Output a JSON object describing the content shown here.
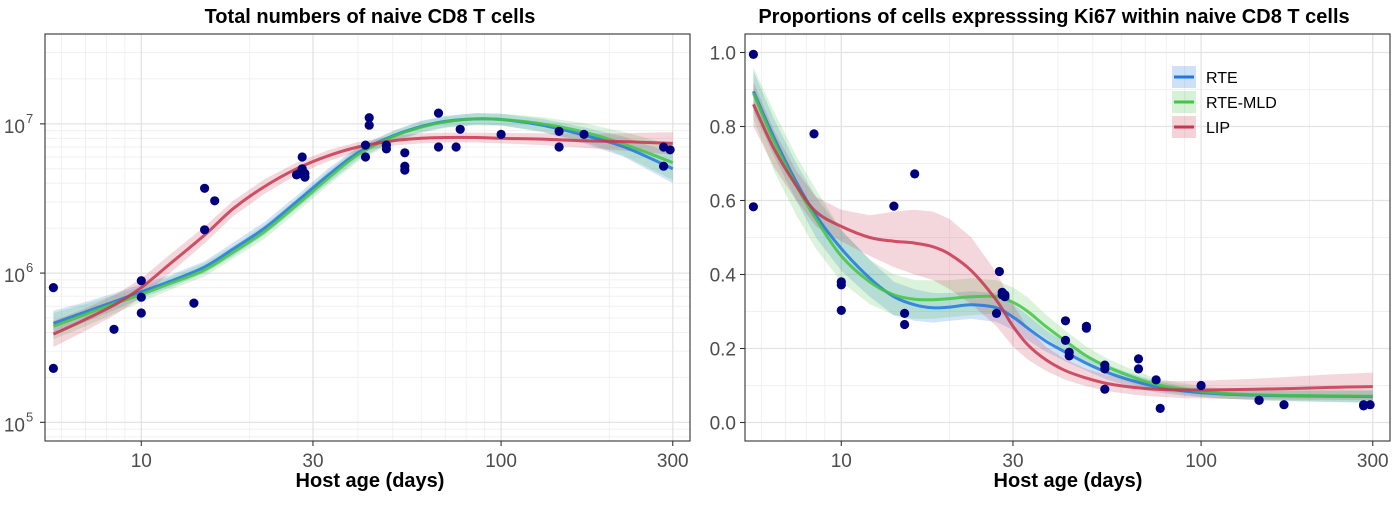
{
  "chart_data": [
    {
      "type": "line",
      "title": "Total numbers of naive CD8 T cells",
      "xlabel": "Host age (days)",
      "ylabel": "",
      "x_scale": "log",
      "y_scale": "log",
      "xlim": [
        5.4,
        335
      ],
      "ylim": [
        75000,
        40000000
      ],
      "x_ticks": [
        10,
        30,
        100,
        300
      ],
      "x_tick_labels": [
        "10",
        "30",
        "100",
        "300"
      ],
      "y_ticks": [
        100000,
        1000000,
        10000000
      ],
      "y_tick_labels": [
        {
          "base": "10",
          "exp": "5"
        },
        {
          "base": "10",
          "exp": "6"
        },
        {
          "base": "10",
          "exp": "7"
        }
      ],
      "grid": true,
      "points": {
        "color": "#00007f",
        "x": [
          5.7,
          5.7,
          8.4,
          10,
          10,
          10,
          14,
          15,
          15,
          16,
          27,
          27.5,
          28,
          28,
          28.5,
          28.5,
          42,
          42,
          43,
          43,
          48,
          48,
          54,
          54,
          54,
          67,
          67,
          75,
          77,
          100,
          145,
          145,
          170,
          283,
          283,
          295
        ],
        "y": [
          800000,
          230000,
          420000,
          890000,
          690000,
          540000,
          630000,
          3700000,
          1950000,
          3050000,
          4550000,
          4650000,
          5000000,
          6000000,
          4400000,
          4650000,
          6000000,
          7200000,
          9800000,
          11000000,
          6800000,
          7200000,
          6400000,
          5200000,
          4900000,
          11800000,
          7000000,
          7000000,
          9200000,
          8500000,
          8900000,
          7000000,
          8500000,
          7000000,
          5200000,
          6700000
        ]
      },
      "series": [
        {
          "name": "RTE",
          "color": "#1f78e0",
          "x": [
            5.7,
            7,
            8.5,
            10,
            12,
            15,
            18,
            22,
            27,
            33,
            40,
            50,
            60,
            70,
            85,
            100,
            130,
            170,
            220,
            300
          ],
          "y": [
            460000,
            550000,
            650000,
            750000,
            880000,
            1100000,
            1450000,
            2000000,
            3000000,
            4500000,
            6400000,
            8300000,
            9600000,
            10400000,
            10800000,
            10700000,
            9800000,
            8400000,
            7000000,
            5000000
          ],
          "lower": [
            380000,
            470000,
            570000,
            680000,
            800000,
            1000000,
            1300000,
            1800000,
            2700000,
            4000000,
            5800000,
            7600000,
            8800000,
            9500000,
            9900000,
            9800000,
            8800000,
            7400000,
            6000000,
            4000000
          ],
          "upper": [
            560000,
            640000,
            740000,
            840000,
            970000,
            1200000,
            1600000,
            2200000,
            3300000,
            5000000,
            7000000,
            9000000,
            10500000,
            11300000,
            11800000,
            11700000,
            10800000,
            9500000,
            8200000,
            6300000
          ]
        },
        {
          "name": "RTE-MLD",
          "color": "#44c444",
          "x": [
            5.7,
            7,
            8.5,
            10,
            12,
            15,
            18,
            22,
            27,
            33,
            40,
            50,
            60,
            70,
            85,
            100,
            130,
            170,
            220,
            300
          ],
          "y": [
            440000,
            530000,
            630000,
            720000,
            850000,
            1050000,
            1380000,
            1900000,
            2850000,
            4300000,
            6200000,
            8200000,
            9500000,
            10300000,
            10800000,
            10700000,
            10000000,
            8800000,
            7300000,
            5500000
          ],
          "lower": [
            360000,
            440000,
            540000,
            640000,
            770000,
            950000,
            1250000,
            1700000,
            2550000,
            3850000,
            5600000,
            7500000,
            8700000,
            9400000,
            9800000,
            9700000,
            8900000,
            7600000,
            6100000,
            4200000
          ],
          "upper": [
            540000,
            620000,
            720000,
            810000,
            940000,
            1170000,
            1520000,
            2100000,
            3150000,
            4800000,
            6900000,
            8900000,
            10400000,
            11200000,
            11800000,
            11700000,
            11100000,
            10100000,
            8800000,
            7200000
          ]
        },
        {
          "name": "LIP",
          "color": "#c8364f",
          "x": [
            5.7,
            7,
            8.5,
            10,
            12,
            15,
            18,
            22,
            27,
            33,
            40,
            50,
            60,
            70,
            85,
            100,
            130,
            170,
            220,
            300
          ],
          "y": [
            390000,
            490000,
            620000,
            800000,
            1150000,
            1800000,
            2700000,
            3800000,
            5000000,
            6100000,
            7000000,
            7700000,
            8000000,
            8100000,
            8100000,
            8000000,
            7900000,
            7700000,
            7600000,
            7400000
          ],
          "lower": [
            320000,
            410000,
            530000,
            690000,
            1000000,
            1580000,
            2400000,
            3400000,
            4550000,
            5600000,
            6500000,
            7150000,
            7400000,
            7500000,
            7500000,
            7400000,
            7200000,
            6900000,
            6600000,
            6200000
          ],
          "upper": [
            480000,
            580000,
            720000,
            920000,
            1330000,
            2050000,
            3050000,
            4250000,
            5500000,
            6650000,
            7550000,
            8300000,
            8650000,
            8750000,
            8750000,
            8700000,
            8650000,
            8600000,
            8650000,
            8800000
          ]
        }
      ]
    },
    {
      "type": "line",
      "title": "Proportions of cells expresssing Ki67 within naive CD8 T cells",
      "xlabel": "Host age (days)",
      "ylabel": "",
      "x_scale": "log",
      "y_scale": "linear",
      "xlim": [
        5.4,
        335
      ],
      "ylim": [
        -0.05,
        1.05
      ],
      "x_ticks": [
        10,
        30,
        100,
        300
      ],
      "x_tick_labels": [
        "10",
        "30",
        "100",
        "300"
      ],
      "y_ticks": [
        0,
        0.2,
        0.4,
        0.6,
        0.8,
        1.0
      ],
      "y_tick_labels": [
        "0.0",
        "0.2",
        "0.4",
        "0.6",
        "0.8",
        "1.0"
      ],
      "grid": true,
      "legend_position": "top-right",
      "points": {
        "color": "#00007f",
        "x": [
          5.7,
          5.7,
          8.4,
          10,
          10,
          10,
          14,
          15,
          15,
          16,
          27,
          27.5,
          28,
          28,
          28.5,
          28.5,
          42,
          42,
          43,
          43,
          48,
          48,
          54,
          54,
          54,
          67,
          67,
          75,
          77,
          100,
          145,
          145,
          170,
          283,
          283,
          295
        ],
        "y": [
          0.995,
          0.583,
          0.78,
          0.38,
          0.372,
          0.303,
          0.585,
          0.295,
          0.265,
          0.672,
          0.295,
          0.408,
          0.352,
          0.345,
          0.345,
          0.34,
          0.275,
          0.222,
          0.19,
          0.18,
          0.26,
          0.255,
          0.155,
          0.145,
          0.09,
          0.172,
          0.145,
          0.115,
          0.038,
          0.1,
          0.06,
          0.06,
          0.048,
          0.048,
          0.045,
          0.048
        ]
      },
      "series": [
        {
          "name": "RTE",
          "color": "#1f78e0",
          "x": [
            5.7,
            6.5,
            7.5,
            8.5,
            10,
            12,
            14,
            16,
            18,
            20,
            23,
            27,
            30,
            33,
            37,
            42,
            48,
            55,
            65,
            75,
            90,
            110,
            140,
            180,
            230,
            300
          ],
          "y": [
            0.895,
            0.77,
            0.65,
            0.56,
            0.47,
            0.39,
            0.34,
            0.318,
            0.31,
            0.312,
            0.318,
            0.31,
            0.285,
            0.255,
            0.22,
            0.19,
            0.16,
            0.135,
            0.112,
            0.097,
            0.085,
            0.078,
            0.074,
            0.072,
            0.071,
            0.07
          ],
          "lower": [
            0.84,
            0.72,
            0.6,
            0.5,
            0.41,
            0.34,
            0.29,
            0.275,
            0.27,
            0.275,
            0.28,
            0.272,
            0.25,
            0.222,
            0.192,
            0.165,
            0.14,
            0.115,
            0.095,
            0.082,
            0.072,
            0.066,
            0.061,
            0.058,
            0.056,
            0.054
          ],
          "upper": [
            0.95,
            0.82,
            0.7,
            0.61,
            0.52,
            0.44,
            0.38,
            0.36,
            0.35,
            0.35,
            0.355,
            0.35,
            0.32,
            0.29,
            0.25,
            0.215,
            0.18,
            0.155,
            0.13,
            0.112,
            0.098,
            0.09,
            0.087,
            0.086,
            0.086,
            0.086
          ]
        },
        {
          "name": "RTE-MLD",
          "color": "#44c444",
          "x": [
            5.7,
            6.5,
            7.5,
            8.5,
            10,
            12,
            14,
            16,
            18,
            20,
            23,
            27,
            30,
            33,
            37,
            42,
            48,
            55,
            65,
            75,
            90,
            110,
            140,
            180,
            230,
            300
          ],
          "y": [
            0.89,
            0.76,
            0.64,
            0.55,
            0.45,
            0.38,
            0.345,
            0.333,
            0.332,
            0.335,
            0.34,
            0.34,
            0.325,
            0.3,
            0.26,
            0.22,
            0.18,
            0.15,
            0.122,
            0.103,
            0.09,
            0.08,
            0.075,
            0.073,
            0.072,
            0.071
          ],
          "lower": [
            0.82,
            0.68,
            0.56,
            0.47,
            0.38,
            0.32,
            0.29,
            0.28,
            0.28,
            0.285,
            0.29,
            0.295,
            0.285,
            0.262,
            0.228,
            0.192,
            0.155,
            0.128,
            0.103,
            0.087,
            0.075,
            0.066,
            0.06,
            0.057,
            0.055,
            0.053
          ],
          "upper": [
            0.96,
            0.84,
            0.72,
            0.63,
            0.52,
            0.44,
            0.4,
            0.385,
            0.384,
            0.385,
            0.39,
            0.385,
            0.365,
            0.338,
            0.292,
            0.248,
            0.205,
            0.172,
            0.141,
            0.119,
            0.105,
            0.094,
            0.09,
            0.089,
            0.089,
            0.089
          ]
        },
        {
          "name": "LIP",
          "color": "#c8364f",
          "x": [
            5.7,
            6.5,
            7.5,
            8.5,
            10,
            12,
            14,
            16,
            18,
            20,
            23,
            27,
            30,
            33,
            37,
            42,
            48,
            55,
            65,
            75,
            90,
            110,
            140,
            180,
            230,
            300
          ],
          "y": [
            0.86,
            0.74,
            0.64,
            0.57,
            0.53,
            0.5,
            0.49,
            0.485,
            0.475,
            0.455,
            0.41,
            0.33,
            0.26,
            0.21,
            0.17,
            0.14,
            0.12,
            0.105,
            0.095,
            0.09,
            0.088,
            0.088,
            0.09,
            0.092,
            0.095,
            0.097
          ],
          "lower": [
            0.8,
            0.69,
            0.6,
            0.53,
            0.49,
            0.45,
            0.42,
            0.4,
            0.385,
            0.36,
            0.32,
            0.26,
            0.205,
            0.17,
            0.14,
            0.115,
            0.098,
            0.085,
            0.075,
            0.07,
            0.066,
            0.064,
            0.063,
            0.062,
            0.061,
            0.06
          ],
          "upper": [
            0.92,
            0.79,
            0.68,
            0.61,
            0.575,
            0.56,
            0.57,
            0.575,
            0.57,
            0.55,
            0.5,
            0.405,
            0.32,
            0.255,
            0.205,
            0.17,
            0.145,
            0.127,
            0.117,
            0.112,
            0.112,
            0.114,
            0.118,
            0.124,
            0.13,
            0.135
          ]
        }
      ]
    }
  ]
}
